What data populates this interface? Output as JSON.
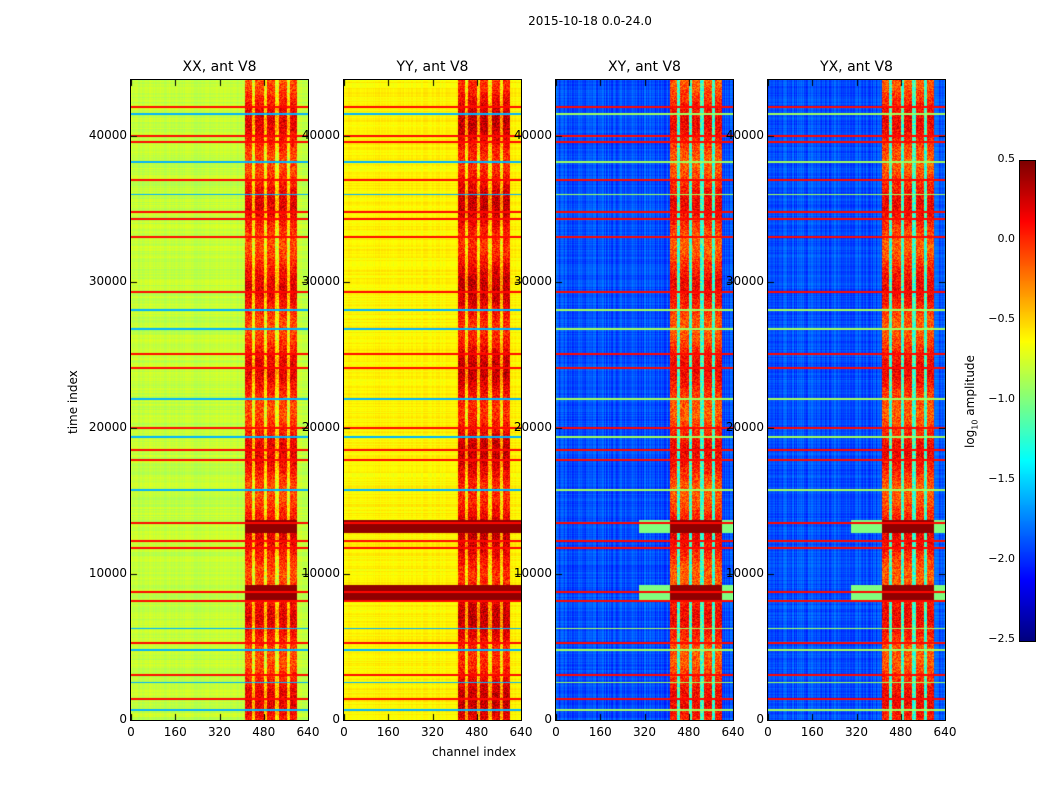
{
  "chart_data": {
    "type": "heatmap",
    "suptitle": "2015-10-18 0.0-24.0",
    "xlabel": "channel index",
    "ylabel": "time index",
    "xlim": [
      0,
      640
    ],
    "ylim": [
      0,
      43800
    ],
    "xticks": [
      "0",
      "160",
      "320",
      "480",
      "640"
    ],
    "yticks": [
      "0",
      "10000",
      "20000",
      "30000",
      "40000"
    ],
    "colormap": "jet",
    "colorbar": {
      "label_prefix": "log",
      "label_sub": "10",
      "label_suffix": " amplitude",
      "range": [
        -2.5,
        0.5
      ],
      "ticks": [
        "0.5",
        "0.0",
        "−0.5",
        "−1.0",
        "−1.5",
        "−2.0",
        "−2.5"
      ]
    },
    "panels": [
      {
        "title": "XX, ant V8",
        "base_level": -0.8,
        "rfi_level": 0.05
      },
      {
        "title": "YY, ant V8",
        "base_level": -0.6,
        "rfi_level": 0.15
      },
      {
        "title": "XY, ant V8",
        "base_level": -1.9,
        "rfi_level": 0.0
      },
      {
        "title": "YX, ant V8",
        "base_level": -1.9,
        "rfi_level": 0.0
      }
    ],
    "rfi_channel_range": [
      410,
      600
    ],
    "high_rows_time_index": [
      1500,
      3100,
      5300,
      8200,
      8800,
      11800,
      12300,
      13500,
      17800,
      18500,
      20000,
      24100,
      25100,
      29300,
      33100,
      34300,
      34800,
      37000,
      39600,
      40000,
      42000
    ],
    "low_rows_time_index": [
      700,
      2600,
      4800,
      6300,
      15800,
      19400,
      22000,
      26800,
      28100,
      36000,
      38200,
      41500
    ],
    "saturated_bands_time_index": [
      [
        8200,
        9300
      ],
      [
        12800,
        13700
      ]
    ]
  }
}
